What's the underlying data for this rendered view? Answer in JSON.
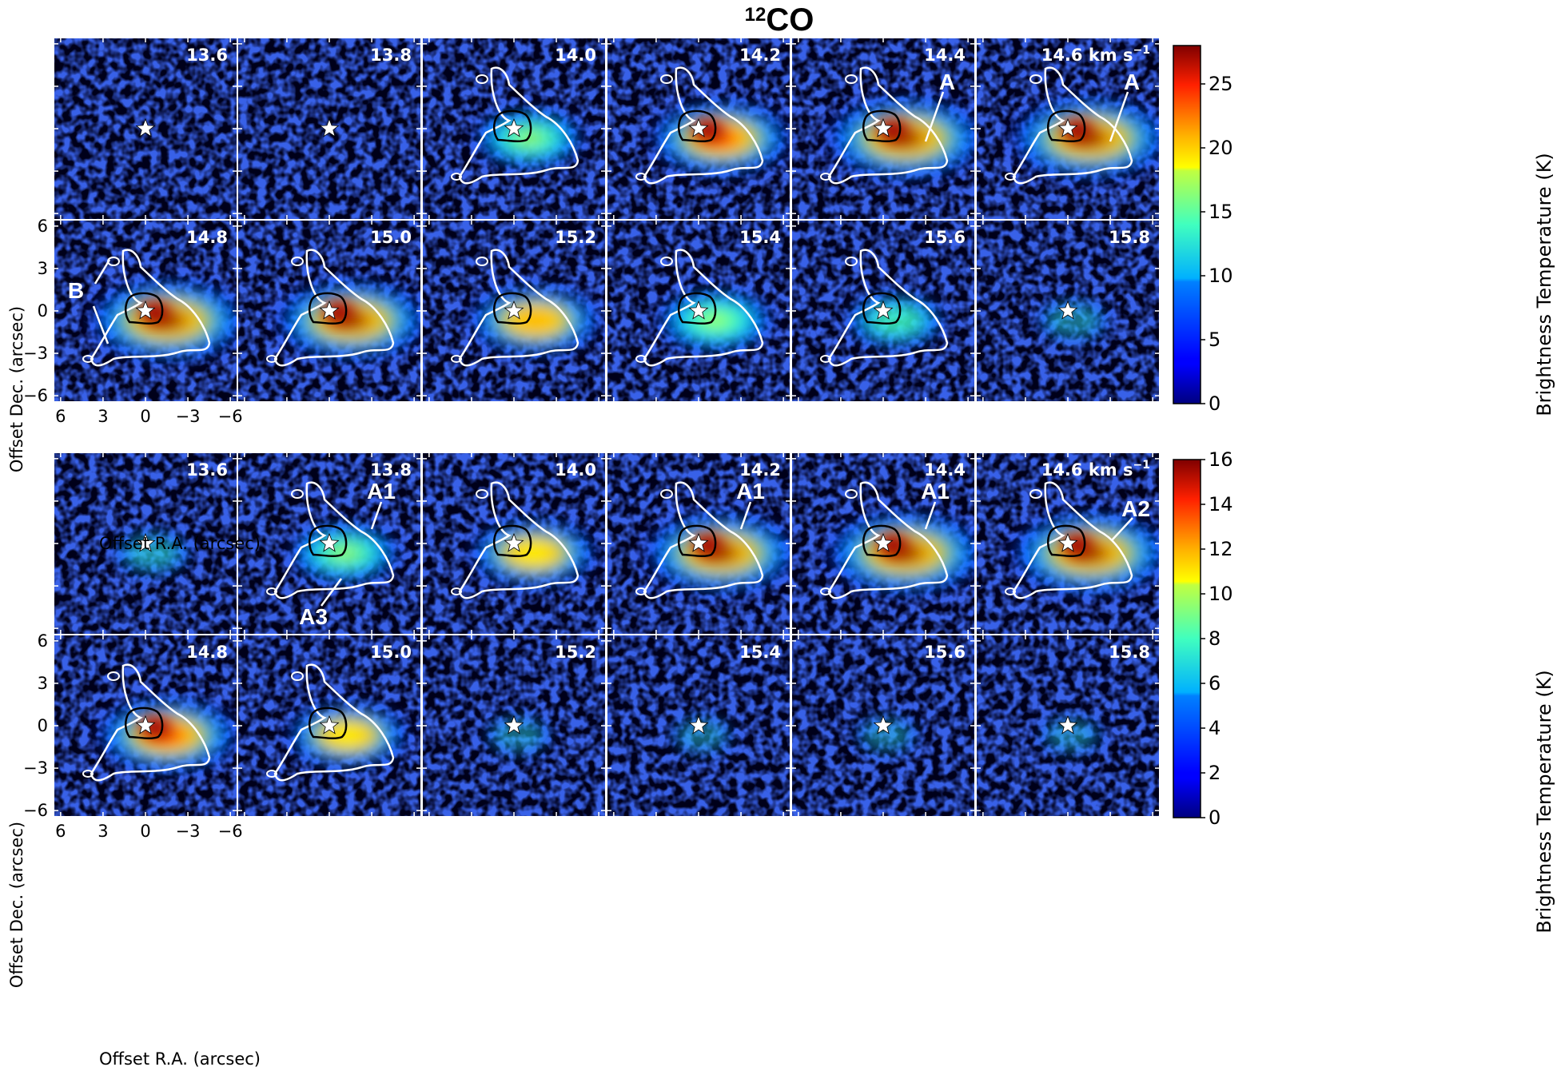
{
  "chart_data": {
    "type": "heatmap",
    "description_kind": "channel maps",
    "colormap": "jet",
    "panel_groups": [
      {
        "id": "co12",
        "title_sup": "12",
        "title_main": "CO",
        "velocities": [
          "13.6",
          "13.8",
          "14.0",
          "14.2",
          "14.4",
          "14.6",
          "14.8",
          "15.0",
          "15.2",
          "15.4",
          "15.6",
          "15.8"
        ],
        "velocity_unit": "km s",
        "velocity_unit_sup": "−1",
        "peak_relative": [
          0.06,
          0.06,
          0.55,
          0.85,
          1.0,
          1.0,
          1.0,
          0.95,
          0.75,
          0.6,
          0.45,
          0.2
        ],
        "contours": [
          false,
          false,
          true,
          true,
          true,
          true,
          true,
          true,
          true,
          true,
          true,
          false
        ],
        "annotations": [
          {
            "panel": 4,
            "label": "A"
          },
          {
            "panel": 5,
            "label": "A"
          },
          {
            "panel": 6,
            "label": "B"
          }
        ],
        "colorbar": {
          "label": "Brightness Temperature (K)",
          "range": [
            0,
            28
          ],
          "ticks": [
            "0",
            "5",
            "10",
            "15",
            "20",
            "25"
          ],
          "tick_values": [
            0,
            5,
            10,
            15,
            20,
            25
          ]
        }
      },
      {
        "id": "co13",
        "title_sup": "13",
        "title_main": "CO",
        "velocities": [
          "13.6",
          "13.8",
          "14.0",
          "14.2",
          "14.4",
          "14.6",
          "14.8",
          "15.0",
          "15.2",
          "15.4",
          "15.6",
          "15.8"
        ],
        "velocity_unit": "km s",
        "velocity_unit_sup": "−1",
        "peak_relative": [
          0.25,
          0.55,
          0.7,
          0.95,
          1.0,
          1.0,
          0.85,
          0.65,
          0.15,
          0.12,
          0.12,
          0.12
        ],
        "contours": [
          false,
          true,
          true,
          true,
          true,
          true,
          true,
          true,
          false,
          false,
          false,
          false
        ],
        "annotations": [
          {
            "panel": 1,
            "label": "A1"
          },
          {
            "panel": 1,
            "label": "A3"
          },
          {
            "panel": 3,
            "label": "A1"
          },
          {
            "panel": 4,
            "label": "A1"
          },
          {
            "panel": 5,
            "label": "A2"
          }
        ],
        "colorbar": {
          "label": "Brightness Temperature (K)",
          "range": [
            0,
            16
          ],
          "ticks": [
            "0",
            "2",
            "4",
            "6",
            "8",
            "10",
            "12",
            "14",
            "16"
          ],
          "tick_values": [
            0,
            2,
            4,
            6,
            8,
            10,
            12,
            14,
            16
          ]
        }
      }
    ],
    "xlabel": "Offset R.A. (arcsec)",
    "ylabel": "Offset Dec. (arcsec)",
    "xticks": [
      "6",
      "3",
      "0",
      "−3",
      "−6"
    ],
    "xtick_values": [
      6,
      3,
      0,
      -3,
      -6
    ],
    "yticks": [
      "6",
      "3",
      "0",
      "−3",
      "−6"
    ],
    "ytick_values": [
      6,
      3,
      0,
      -3,
      -6
    ],
    "xlim": [
      6.5,
      -6.5
    ],
    "ylim": [
      -6.5,
      6.5
    ],
    "source_marker": "star",
    "source_position": [
      0,
      0
    ]
  }
}
